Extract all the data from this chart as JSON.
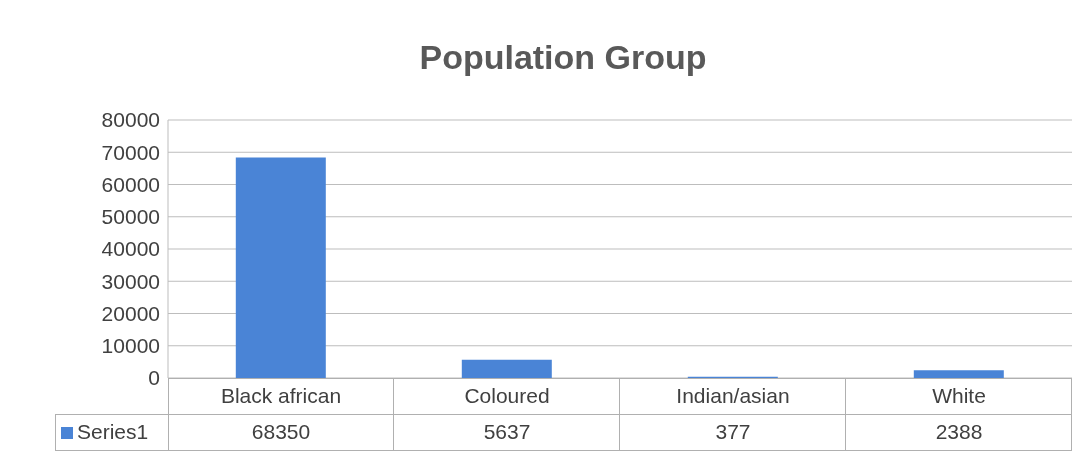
{
  "chart_data": {
    "type": "bar",
    "title": "Population Group",
    "categories": [
      "Black african",
      "Coloured",
      "Indian/asian",
      "White"
    ],
    "series": [
      {
        "name": "Series1",
        "color": "#4a84d6",
        "values": [
          68350,
          5637,
          377,
          2388
        ]
      }
    ],
    "ylim": [
      0,
      80000
    ],
    "yticks": [
      0,
      10000,
      20000,
      30000,
      40000,
      50000,
      60000,
      70000,
      80000
    ],
    "grid": "y",
    "data_labels": true
  }
}
